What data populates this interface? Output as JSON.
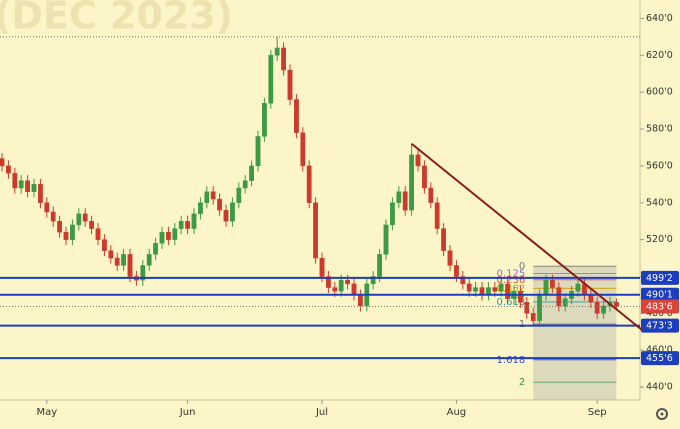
{
  "chart_data": {
    "type": "candlestick",
    "title": "(DEC 2023)",
    "categories": [
      null,
      null,
      null,
      null,
      null,
      null,
      null,
      "May",
      null,
      null,
      null,
      null,
      null,
      null,
      null,
      null,
      null,
      null,
      null,
      null,
      null,
      null,
      null,
      null,
      null,
      null,
      null,
      null,
      null,
      "Jun",
      null,
      null,
      null,
      null,
      null,
      null,
      null,
      null,
      null,
      null,
      null,
      null,
      null,
      null,
      null,
      null,
      null,
      null,
      null,
      null,
      "Jul",
      null,
      null,
      null,
      null,
      null,
      null,
      null,
      null,
      null,
      null,
      null,
      null,
      null,
      null,
      null,
      null,
      null,
      null,
      null,
      null,
      "Aug",
      null,
      null,
      null,
      null,
      null,
      null,
      null,
      null,
      null,
      null,
      null,
      null,
      null,
      null,
      null,
      null,
      null,
      null,
      null,
      null,
      null,
      "Sep",
      null,
      null,
      null
    ],
    "ohlc": [
      [
        564,
        567,
        557,
        560
      ],
      [
        560,
        563,
        553,
        556
      ],
      [
        556,
        559,
        545,
        548
      ],
      [
        548,
        555,
        545,
        552
      ],
      [
        552,
        555,
        543,
        546
      ],
      [
        546,
        553,
        543,
        550
      ],
      [
        550,
        553,
        537,
        540
      ],
      [
        540,
        543,
        532,
        535
      ],
      [
        535,
        538,
        527,
        530
      ],
      [
        530,
        533,
        521,
        524
      ],
      [
        524,
        527,
        517,
        520
      ],
      [
        520,
        531,
        517,
        528
      ],
      [
        528,
        537,
        525,
        534
      ],
      [
        534,
        537,
        527,
        530
      ],
      [
        530,
        533,
        523,
        526
      ],
      [
        526,
        529,
        517,
        520
      ],
      [
        520,
        523,
        511,
        514
      ],
      [
        514,
        517,
        507,
        510
      ],
      [
        510,
        513,
        503,
        506
      ],
      [
        506,
        515,
        503,
        512
      ],
      [
        512,
        515,
        497,
        500
      ],
      [
        500,
        503,
        495,
        498
      ],
      [
        498,
        509,
        495,
        506
      ],
      [
        506,
        515,
        503,
        512
      ],
      [
        512,
        521,
        509,
        518
      ],
      [
        518,
        527,
        515,
        524
      ],
      [
        524,
        527,
        517,
        520
      ],
      [
        520,
        529,
        517,
        526
      ],
      [
        526,
        533,
        523,
        530
      ],
      [
        530,
        533,
        523,
        526
      ],
      [
        526,
        537,
        523,
        534
      ],
      [
        534,
        543,
        531,
        540
      ],
      [
        540,
        549,
        537,
        546
      ],
      [
        546,
        549,
        539,
        542
      ],
      [
        542,
        545,
        533,
        536
      ],
      [
        536,
        539,
        527,
        530
      ],
      [
        530,
        543,
        527,
        540
      ],
      [
        540,
        551,
        537,
        548
      ],
      [
        548,
        555,
        545,
        552
      ],
      [
        552,
        563,
        549,
        560
      ],
      [
        560,
        579,
        557,
        576
      ],
      [
        576,
        597,
        573,
        594
      ],
      [
        594,
        623,
        591,
        620
      ],
      [
        620,
        630,
        617,
        624
      ],
      [
        624,
        627,
        609,
        612
      ],
      [
        612,
        615,
        593,
        596
      ],
      [
        596,
        599,
        575,
        578
      ],
      [
        578,
        581,
        557,
        560
      ],
      [
        560,
        563,
        537,
        540
      ],
      [
        540,
        543,
        507,
        510
      ],
      [
        510,
        513,
        497,
        500
      ],
      [
        500,
        503,
        491,
        494
      ],
      [
        494,
        497,
        489,
        492
      ],
      [
        492,
        501,
        489,
        498
      ],
      [
        498,
        501,
        493,
        496
      ],
      [
        496,
        499,
        487,
        490
      ],
      [
        490,
        493,
        481,
        484
      ],
      [
        484,
        499,
        481,
        496
      ],
      [
        496,
        503,
        493,
        500
      ],
      [
        500,
        515,
        497,
        512
      ],
      [
        512,
        531,
        509,
        528
      ],
      [
        528,
        543,
        525,
        540
      ],
      [
        540,
        549,
        537,
        546
      ],
      [
        546,
        549,
        533,
        536
      ],
      [
        536,
        572,
        533,
        566
      ],
      [
        566,
        569,
        557,
        560
      ],
      [
        560,
        563,
        545,
        548
      ],
      [
        548,
        551,
        537,
        540
      ],
      [
        540,
        543,
        523,
        526
      ],
      [
        526,
        529,
        511,
        514
      ],
      [
        514,
        517,
        503,
        506
      ],
      [
        506,
        509,
        497,
        500
      ],
      [
        500,
        503,
        493,
        496
      ],
      [
        496,
        499,
        489,
        492
      ],
      [
        492,
        497,
        489,
        494
      ],
      [
        494,
        497,
        487,
        490
      ],
      [
        490,
        497,
        487,
        494
      ],
      [
        494,
        497,
        489,
        492
      ],
      [
        492,
        499,
        489,
        496
      ],
      [
        496,
        499,
        485,
        488
      ],
      [
        488,
        495,
        485,
        492
      ],
      [
        492,
        495,
        483,
        486
      ],
      [
        486,
        489,
        477,
        480
      ],
      [
        480,
        483,
        473,
        476
      ],
      [
        476,
        493,
        473,
        490
      ],
      [
        490,
        501,
        487,
        498
      ],
      [
        498,
        501,
        491,
        494
      ],
      [
        494,
        497,
        481,
        484
      ],
      [
        484,
        491,
        481,
        488
      ],
      [
        488,
        495,
        485,
        492
      ],
      [
        492,
        499,
        489,
        496
      ],
      [
        496,
        499,
        487,
        490
      ],
      [
        490,
        493,
        483,
        486
      ],
      [
        486,
        489,
        477,
        480
      ],
      [
        480,
        487,
        477,
        484
      ],
      [
        484,
        489,
        481,
        486
      ],
      [
        486,
        488,
        482,
        483.75
      ]
    ],
    "up_color": "#3c9a45",
    "down_color": "#cc3a2e",
    "ylim": [
      433,
      650
    ],
    "yticks": [
      {
        "value": 440,
        "label": "440'0"
      },
      {
        "value": 460,
        "label": "460'0"
      },
      {
        "value": 480,
        "label": "480'0"
      },
      {
        "value": 500,
        "label": "500'0"
      },
      {
        "value": 520,
        "label": "520'0"
      },
      {
        "value": 540,
        "label": "540'0"
      },
      {
        "value": 560,
        "label": "560'0"
      },
      {
        "value": 580,
        "label": "580'0"
      },
      {
        "value": 600,
        "label": "600'0"
      },
      {
        "value": 620,
        "label": "620'0"
      },
      {
        "value": 640,
        "label": "640'0"
      }
    ],
    "levels": [
      {
        "value": 499.25,
        "label": "499'2",
        "color": "#1d3dbf"
      },
      {
        "value": 490.125,
        "label": "490'1",
        "color": "#1d3dbf"
      },
      {
        "value": 483.75,
        "label": "483'6",
        "color": "#d6453a"
      },
      {
        "value": 473.375,
        "label": "473'3",
        "color": "#1d3dbf"
      },
      {
        "value": 455.75,
        "label": "455'6",
        "color": "#1d3dbf"
      }
    ],
    "peak_level": 630,
    "trendline": {
      "start": {
        "index": 64,
        "value": 572
      },
      "end": {
        "index": 100,
        "value": 471
      },
      "color": "#8b1a1a"
    },
    "fibonacci": {
      "start_index": 83,
      "end_index": 96,
      "levels": [
        {
          "label": "0",
          "value": 505.6
        },
        {
          "label": "0.125",
          "value": 501.7
        },
        {
          "label": "0.236",
          "value": 498.2
        },
        {
          "label": "0.382",
          "value": 493.6
        },
        {
          "label": "0.5",
          "value": 489.9
        },
        {
          "label": "0.618",
          "value": 486.2
        },
        {
          "label": "1",
          "value": 474.2
        },
        {
          "label": "1.618",
          "value": 454.8
        },
        {
          "label": "2",
          "value": 442.7
        }
      ]
    }
  }
}
